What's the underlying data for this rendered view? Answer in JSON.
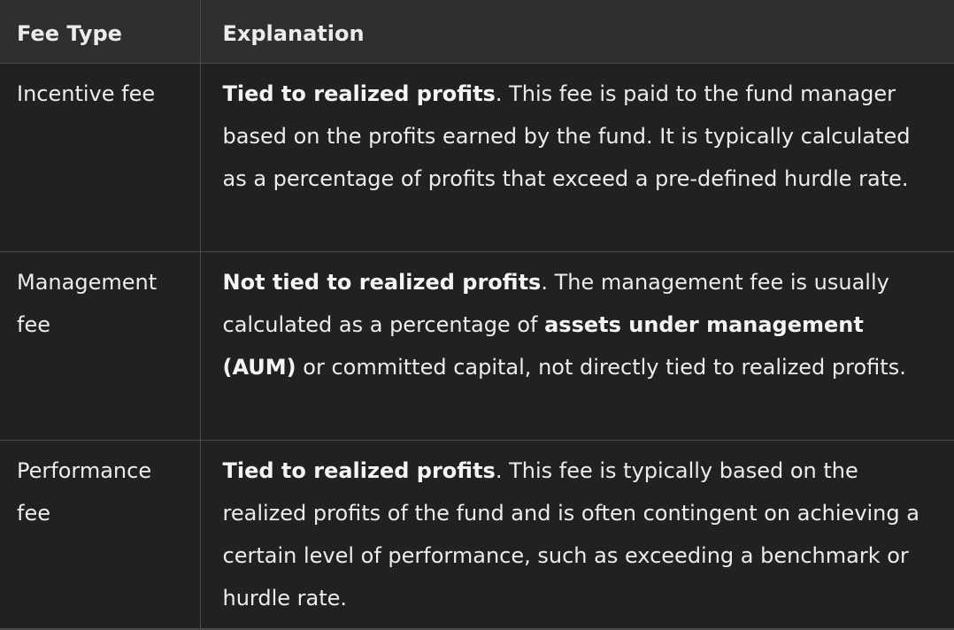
{
  "table": {
    "headers": [
      "Fee Type",
      "Explanation"
    ],
    "rows": [
      {
        "fee_type": "Incentive fee",
        "bold": "Tied to realized profits",
        "text": ". This fee is paid to the fund manager based on the profits earned by the fund. It is typically calculated as a percentage of profits that exceed a pre-defined hurdle rate."
      },
      {
        "fee_type": "Management fee",
        "bold": "Not tied to realized profits",
        "text": ". The management fee is usually calculated as a percentage of ",
        "bold2": "assets under management (AUM)",
        "text2": " or committed capital, not directly tied to realized profits."
      },
      {
        "fee_type": "Performance fee",
        "bold": "Tied to realized profits",
        "text": ". This fee is typically based on the realized profits of the fund and is often contingent on achieving a certain level of performance, such as exceeding a benchmark or hurdle rate."
      }
    ]
  }
}
